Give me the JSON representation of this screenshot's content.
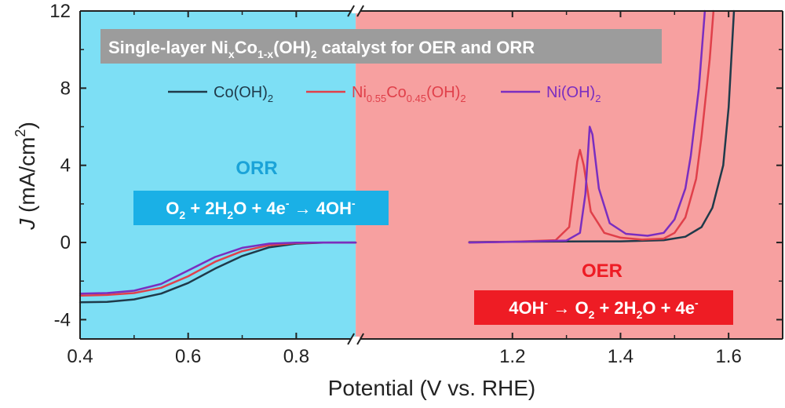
{
  "chart_data": {
    "type": "line",
    "title": {
      "main": "Single-layer Ni",
      "sub1": "x",
      "mid": "Co",
      "sub2": "1-x",
      "end1": "(OH)",
      "sub3": "2",
      "end2": " catalyst for OER and ORR"
    },
    "xlabel": "Potential (V vs. RHE)",
    "ylabel": {
      "italic": "J",
      "rest": " (mA/cm",
      "sup": "2",
      "close": ")"
    },
    "xlim": [
      0.4,
      1.7
    ],
    "ylim": [
      -5,
      12
    ],
    "axis_break_x": 0.91,
    "x_ticks": [
      {
        "value": 0.4,
        "label": "0.4"
      },
      {
        "value": 0.6,
        "label": "0.6"
      },
      {
        "value": 0.8,
        "label": "0.8"
      },
      {
        "value": 1.2,
        "label": "1.2"
      },
      {
        "value": 1.4,
        "label": "1.4"
      },
      {
        "value": 1.6,
        "label": "1.6"
      }
    ],
    "y_ticks": [
      {
        "value": -4,
        "label": "-4"
      },
      {
        "value": 0,
        "label": "0"
      },
      {
        "value": 4,
        "label": "4"
      },
      {
        "value": 8,
        "label": "8"
      },
      {
        "value": 12,
        "label": "12"
      }
    ],
    "regions": [
      {
        "name": "ORR",
        "x_range": [
          0.4,
          0.91
        ],
        "color": "#7ddff5"
      },
      {
        "name": "OER",
        "x_range": [
          0.91,
          1.7
        ],
        "color": "#f7a0a0"
      }
    ],
    "annotations": {
      "orr_label": "ORR",
      "orr_equation": {
        "a": "O",
        "a_sub": "2",
        "b": " + 2H",
        "b_sub": "2",
        "c": "O + 4e",
        "c_sup": "-",
        "d": " → 4OH",
        "d_sup": "-"
      },
      "oer_label": "OER",
      "oer_equation": {
        "a": "4OH",
        "a_sup": "-",
        "b": " → O",
        "b_sub": "2",
        "c": " + 2H",
        "c_sub": "2",
        "d": "O + 4e",
        "d_sup": "-"
      }
    },
    "series": [
      {
        "name": {
          "base": "Co(OH)",
          "sub": "2"
        },
        "color": "#1f3a4a",
        "orr": [
          [
            0.4,
            -3.1
          ],
          [
            0.45,
            -3.08
          ],
          [
            0.5,
            -2.95
          ],
          [
            0.55,
            -2.65
          ],
          [
            0.6,
            -2.1
          ],
          [
            0.65,
            -1.35
          ],
          [
            0.7,
            -0.7
          ],
          [
            0.75,
            -0.25
          ],
          [
            0.8,
            -0.06
          ],
          [
            0.85,
            -0.01
          ],
          [
            0.91,
            0.0
          ]
        ],
        "oer": [
          [
            1.12,
            0.02
          ],
          [
            1.2,
            0.04
          ],
          [
            1.3,
            0.05
          ],
          [
            1.4,
            0.06
          ],
          [
            1.48,
            0.12
          ],
          [
            1.52,
            0.3
          ],
          [
            1.55,
            0.8
          ],
          [
            1.57,
            1.8
          ],
          [
            1.59,
            4.0
          ],
          [
            1.6,
            7.0
          ],
          [
            1.61,
            12.0
          ]
        ]
      },
      {
        "name": {
          "base": "Ni",
          "sub1": "0.55",
          "mid": "Co",
          "sub2": "0.45",
          "end": "(OH)",
          "sub3": "2"
        },
        "color": "#e0404a",
        "orr": [
          [
            0.4,
            -2.75
          ],
          [
            0.45,
            -2.72
          ],
          [
            0.5,
            -2.62
          ],
          [
            0.55,
            -2.35
          ],
          [
            0.6,
            -1.75
          ],
          [
            0.65,
            -1.0
          ],
          [
            0.7,
            -0.45
          ],
          [
            0.75,
            -0.14
          ],
          [
            0.8,
            -0.03
          ],
          [
            0.85,
            0.0
          ],
          [
            0.91,
            0.0
          ]
        ],
        "oer": [
          [
            1.12,
            0.0
          ],
          [
            1.2,
            0.04
          ],
          [
            1.28,
            0.12
          ],
          [
            1.305,
            0.8
          ],
          [
            1.32,
            4.2
          ],
          [
            1.325,
            4.8
          ],
          [
            1.332,
            4.0
          ],
          [
            1.345,
            1.6
          ],
          [
            1.37,
            0.5
          ],
          [
            1.4,
            0.25
          ],
          [
            1.44,
            0.15
          ],
          [
            1.48,
            0.2
          ],
          [
            1.5,
            0.5
          ],
          [
            1.52,
            1.3
          ],
          [
            1.54,
            3.3
          ],
          [
            1.55,
            5.5
          ],
          [
            1.565,
            9.5
          ],
          [
            1.572,
            12.0
          ]
        ]
      },
      {
        "name": {
          "base": "Ni(OH)",
          "sub": "2"
        },
        "color": "#7a2ec0",
        "orr": [
          [
            0.4,
            -2.65
          ],
          [
            0.45,
            -2.62
          ],
          [
            0.5,
            -2.5
          ],
          [
            0.55,
            -2.15
          ],
          [
            0.6,
            -1.45
          ],
          [
            0.65,
            -0.75
          ],
          [
            0.7,
            -0.28
          ],
          [
            0.75,
            -0.06
          ],
          [
            0.8,
            -0.01
          ],
          [
            0.85,
            0.0
          ],
          [
            0.91,
            0.0
          ]
        ],
        "oer": [
          [
            1.12,
            0.0
          ],
          [
            1.2,
            0.03
          ],
          [
            1.3,
            0.1
          ],
          [
            1.325,
            0.5
          ],
          [
            1.335,
            2.5
          ],
          [
            1.343,
            6.0
          ],
          [
            1.348,
            5.6
          ],
          [
            1.36,
            2.8
          ],
          [
            1.38,
            1.0
          ],
          [
            1.41,
            0.45
          ],
          [
            1.45,
            0.35
          ],
          [
            1.48,
            0.5
          ],
          [
            1.5,
            1.2
          ],
          [
            1.52,
            2.8
          ],
          [
            1.53,
            4.5
          ],
          [
            1.545,
            8.0
          ],
          [
            1.556,
            12.0
          ]
        ]
      }
    ]
  }
}
